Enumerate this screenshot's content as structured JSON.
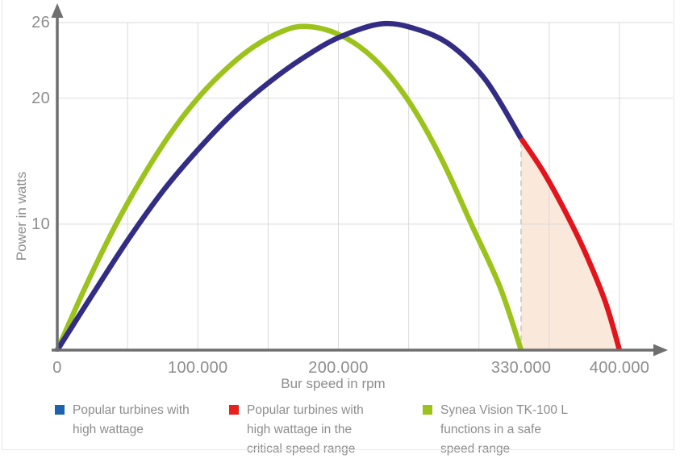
{
  "chart_data": {
    "type": "line",
    "title": "",
    "xlabel": "Bur speed in rpm",
    "ylabel": "Power in watts",
    "x_range": [
      0,
      400000
    ],
    "y_range": [
      0,
      26
    ],
    "grid": true,
    "x_grid_interval": 50000,
    "x_ticks": [
      {
        "value": 0,
        "label": "0"
      },
      {
        "value": 100000,
        "label": "100.000"
      },
      {
        "value": 200000,
        "label": "200.000"
      },
      {
        "value": 330000,
        "label": "330.000"
      },
      {
        "value": 400000,
        "label": "400.000"
      }
    ],
    "y_ticks": [
      {
        "value": 10,
        "label": "10"
      },
      {
        "value": 20,
        "label": "20"
      },
      {
        "value": 26,
        "label": "26"
      }
    ],
    "series": [
      {
        "id": "popular",
        "name": "Popular turbines with high wattage",
        "color": "#322C85",
        "points": [
          [
            0,
            0
          ],
          [
            25000,
            4.4
          ],
          [
            50000,
            8.7
          ],
          [
            75000,
            12.6
          ],
          [
            100000,
            15.9
          ],
          [
            125000,
            18.8
          ],
          [
            150000,
            21.2
          ],
          [
            175000,
            23.2
          ],
          [
            200000,
            24.8
          ],
          [
            230000,
            25.9
          ],
          [
            255000,
            25.5
          ],
          [
            280000,
            24.2
          ],
          [
            305000,
            21.4
          ],
          [
            330000,
            16.8
          ]
        ]
      },
      {
        "id": "critical",
        "name": "Popular turbines with high wattage in the critical speed range",
        "color": "#E2141C",
        "points": [
          [
            330000,
            16.8
          ],
          [
            345000,
            14.3
          ],
          [
            360000,
            11.3
          ],
          [
            375000,
            7.9
          ],
          [
            390000,
            3.8
          ],
          [
            400000,
            0
          ]
        ]
      },
      {
        "id": "synea",
        "name": "Synea Vision TK-100 L functions in a safe speed range",
        "color": "#9BC31B",
        "points": [
          [
            0,
            0
          ],
          [
            20000,
            5.0
          ],
          [
            40000,
            9.6
          ],
          [
            60000,
            13.6
          ],
          [
            80000,
            17.1
          ],
          [
            100000,
            20.0
          ],
          [
            120000,
            22.3
          ],
          [
            140000,
            24.1
          ],
          [
            160000,
            25.3
          ],
          [
            175000,
            25.7
          ],
          [
            195000,
            25.3
          ],
          [
            215000,
            24.1
          ],
          [
            235000,
            22.0
          ],
          [
            255000,
            18.9
          ],
          [
            275000,
            14.8
          ],
          [
            295000,
            9.9
          ],
          [
            315000,
            5.0
          ],
          [
            330000,
            0
          ]
        ]
      }
    ],
    "annotations": {
      "dashed_line_x": 330000,
      "critical_area_range": [
        330000,
        400000
      ],
      "critical_area_fill": "#FAE8DB"
    }
  },
  "legend": {
    "items": [
      {
        "label": "Popular turbines with high wattage",
        "color": "#1C63AE"
      },
      {
        "label": "Popular turbines with high wattage in the critical speed range",
        "color": "#E8211D"
      },
      {
        "label": "Synea Vision TK-100 L functions in a safe speed range",
        "color": "#9BC31B"
      }
    ]
  },
  "colors": {
    "axis": "#6F6F6F",
    "grid": "#DADADA",
    "tick_text": "#8D8D8D",
    "dashed_line": "#D0D0D0",
    "background": "#FFFFFF"
  }
}
